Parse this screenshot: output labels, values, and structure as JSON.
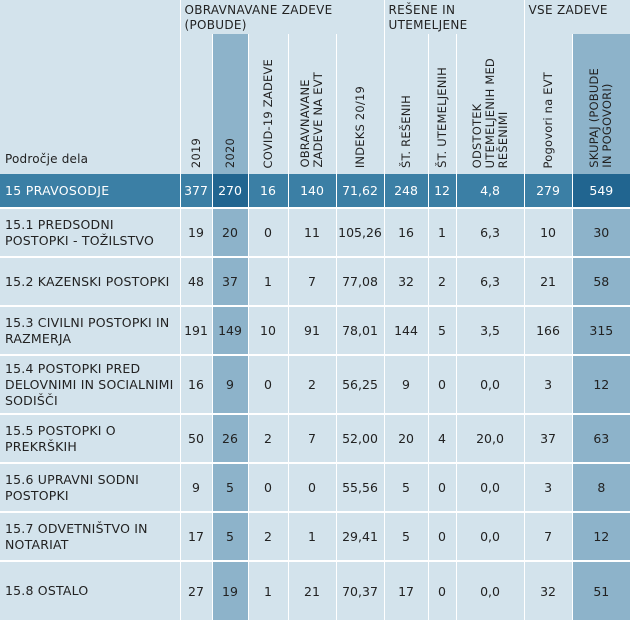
{
  "header": {
    "group_obravnavane": "OBRAVNAVANE ZADEVE (POBUDE)",
    "group_resene": "REŠENE IN UTEMELJENE",
    "group_vse": "VSE ZADEVE",
    "area_label": "Področje dela",
    "columns": [
      "2019",
      "2020",
      "COVID-19 ZADEVE",
      "OBRAVNAVANE\nZADEVE NA EVT",
      "INDEKS 20/19",
      "ŠT. REŠENIH",
      "ŠT. UTEMELJENIH",
      "ODSTOTEK\nUTEMELJENIH MED\nREŠENIMI",
      "Pogovori na EVT",
      "SKUPAJ (POBUDE\nIN POGOVORI)"
    ]
  },
  "summary": {
    "name": "15  PRAVOSODJE",
    "values": [
      "377",
      "270",
      "16",
      "140",
      "71,62",
      "248",
      "12",
      "4,8",
      "279",
      "549"
    ]
  },
  "rows": [
    {
      "name": "15.1  PREDSODNI POSTOPKI - TOŽILSTVO",
      "values": [
        "19",
        "20",
        "0",
        "11",
        "105,26",
        "16",
        "1",
        "6,3",
        "10",
        "30"
      ]
    },
    {
      "name": "15.2  KAZENSKI POSTOPKI",
      "values": [
        "48",
        "37",
        "1",
        "7",
        "77,08",
        "32",
        "2",
        "6,3",
        "21",
        "58"
      ]
    },
    {
      "name": "15.3  CIVILNI POSTOPKI IN RAZMERJA",
      "values": [
        "191",
        "149",
        "10",
        "91",
        "78,01",
        "144",
        "5",
        "3,5",
        "166",
        "315"
      ]
    },
    {
      "name": "15.4  POSTOPKI PRED DELOVNIMI IN SOCIALNIMI SODIŠČI",
      "values": [
        "16",
        "9",
        "0",
        "2",
        "56,25",
        "9",
        "0",
        "0,0",
        "3",
        "12"
      ]
    },
    {
      "name": "15.5  POSTOPKI O PREKRŠKIH",
      "values": [
        "50",
        "26",
        "2",
        "7",
        "52,00",
        "20",
        "4",
        "20,0",
        "37",
        "63"
      ]
    },
    {
      "name": "15.6  UPRAVNI SODNI POSTOPKI",
      "values": [
        "9",
        "5",
        "0",
        "0",
        "55,56",
        "5",
        "0",
        "0,0",
        "3",
        "8"
      ]
    },
    {
      "name": "15.7  ODVETNIŠTVO IN NOTARIAT",
      "values": [
        "17",
        "5",
        "2",
        "1",
        "29,41",
        "5",
        "0",
        "0,0",
        "7",
        "12"
      ]
    },
    {
      "name": "15.8  OSTALO",
      "values": [
        "27",
        "19",
        "1",
        "21",
        "70,37",
        "17",
        "0",
        "0,0",
        "32",
        "51"
      ]
    }
  ],
  "colors": {
    "light": "#d3e3ec",
    "medium": "#8db3ca",
    "summary": "#3b7fa5",
    "summary_dark": "#216590"
  }
}
